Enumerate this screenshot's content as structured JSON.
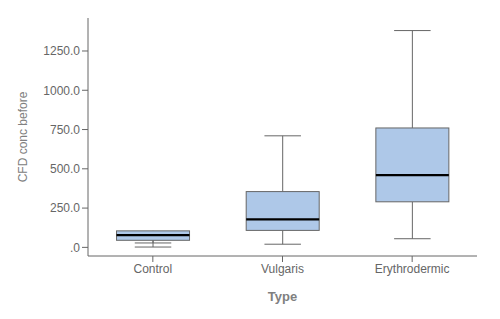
{
  "chart_data": {
    "type": "box",
    "categories": [
      "Control",
      "Vulgaris",
      "Erythrodermic"
    ],
    "boxes": [
      {
        "whislo": 2,
        "q1": 45,
        "med": 78,
        "q3": 105,
        "whishi": 28
      },
      {
        "whislo": 20,
        "q1": 108,
        "med": 178,
        "q3": 355,
        "whishi": 710
      },
      {
        "whislo": 55,
        "q1": 290,
        "med": 460,
        "q3": 760,
        "whishi": 1380
      }
    ],
    "xlabel": "Type",
    "ylabel": "CFD conc before",
    "ylim": [
      -55,
      1460
    ],
    "yticks": [
      {
        "value": 0,
        "label": ".0"
      },
      {
        "value": 250,
        "label": "250.0"
      },
      {
        "value": 500,
        "label": "500.0"
      },
      {
        "value": 750,
        "label": "750.0"
      },
      {
        "value": 1000,
        "label": "1000.0"
      },
      {
        "value": 1250,
        "label": "1250.0"
      }
    ],
    "color": "#aec8e8"
  }
}
